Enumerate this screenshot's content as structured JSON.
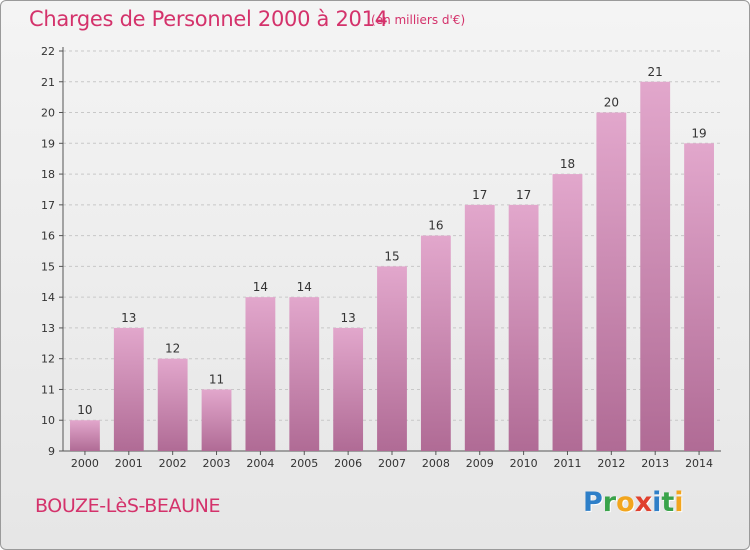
{
  "header": {
    "title": "Charges de Personnel 2000 à 2014",
    "subtitle": "(en milliers d'€)"
  },
  "footer": {
    "commune": "BOUZE-LèS-BEAUNE",
    "logo_letters": [
      {
        "ch": "P",
        "color": "#2e7fc8"
      },
      {
        "ch": "r",
        "color": "#3aa34a"
      },
      {
        "ch": "o",
        "color": "#f2a51d"
      },
      {
        "ch": "x",
        "color": "#e0402e"
      },
      {
        "ch": "i",
        "color": "#2e7fc8"
      },
      {
        "ch": "t",
        "color": "#3aa34a"
      },
      {
        "ch": "i",
        "color": "#f2a51d"
      }
    ]
  },
  "colors": {
    "accent": "#d4326b",
    "bar_top": "#e2a7cc",
    "bar_bottom": "#b06b95",
    "grid": "#c8c8c8"
  },
  "chart_data": {
    "type": "bar",
    "categories": [
      "2000",
      "2001",
      "2002",
      "2003",
      "2004",
      "2005",
      "2006",
      "2007",
      "2008",
      "2009",
      "2010",
      "2011",
      "2012",
      "2013",
      "2014"
    ],
    "values": [
      10,
      13,
      12,
      11,
      14,
      14,
      13,
      15,
      16,
      17,
      17,
      18,
      20,
      21,
      19
    ],
    "ylim": [
      9,
      22
    ],
    "yticks": [
      9,
      10,
      11,
      12,
      13,
      14,
      15,
      16,
      17,
      18,
      19,
      20,
      21,
      22
    ],
    "grid": "horizontal dashed",
    "data_labels": true
  }
}
